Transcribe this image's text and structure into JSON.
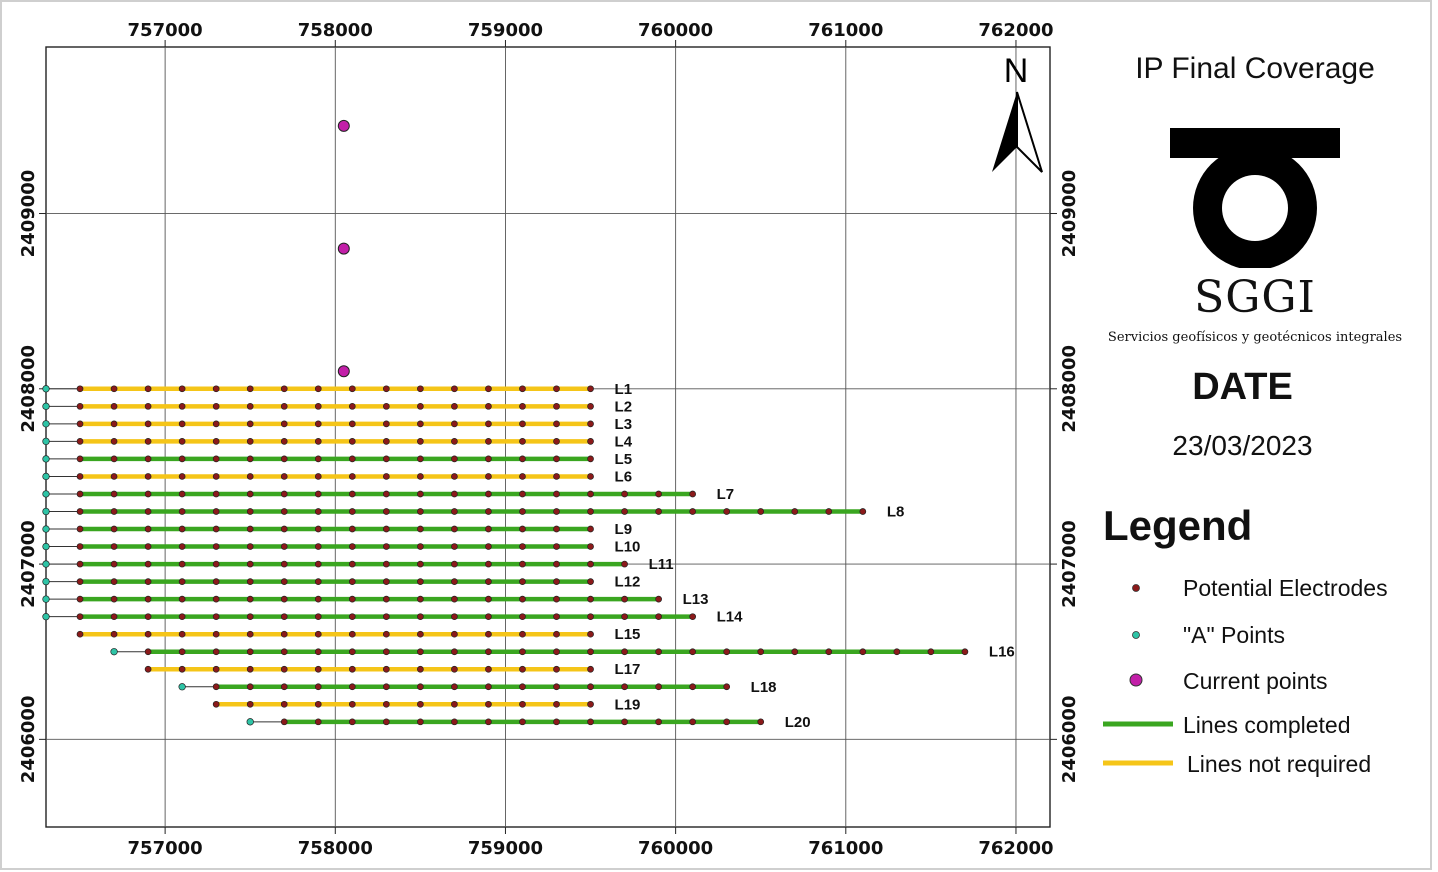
{
  "title": "IP Final Coverage",
  "brand": {
    "name": "SGGI",
    "subtitle": "Servicios geofísicos y geotécnicos integrales"
  },
  "date": {
    "label": "DATE",
    "value": "23/03/2023"
  },
  "north_arrow": {
    "letter": "N"
  },
  "legend": {
    "title": "Legend",
    "items": [
      {
        "label": "Potential Electrodes",
        "symbol": "small-dot",
        "color": "#8b1a1a"
      },
      {
        "label": "\"A\" Points",
        "symbol": "small-dot",
        "color": "#2ec4a6"
      },
      {
        "label": "Current points",
        "symbol": "large-dot",
        "color": "#c21fa8"
      },
      {
        "label": "Lines completed",
        "symbol": "line",
        "color": "#3aa620"
      },
      {
        "label": "Lines not required",
        "symbol": "line",
        "color": "#f5c518"
      }
    ]
  },
  "colors": {
    "completed": "#3aa620",
    "not_required": "#f5c518",
    "electrode": "#8b1a1a",
    "a_point": "#2ec4a6",
    "current": "#c21fa8"
  },
  "chart_data": {
    "type": "map",
    "x_axis": {
      "ticks": [
        757000,
        758000,
        759000,
        760000,
        761000,
        762000
      ],
      "range": [
        756300,
        762200
      ]
    },
    "y_axis": {
      "ticks": [
        2406000,
        2407000,
        2408000,
        2409000
      ],
      "range": [
        2405500,
        2409950
      ]
    },
    "grid": true,
    "current_points": [
      {
        "x": 758050,
        "y": 2409500
      },
      {
        "x": 758050,
        "y": 2408800
      },
      {
        "x": 758050,
        "y": 2408100
      }
    ],
    "lines": [
      {
        "name": "L1",
        "y": 2408000,
        "x_start": 756500,
        "x_end": 759500,
        "status": "not_required",
        "a_point": 756300
      },
      {
        "name": "L2",
        "y": 2407900,
        "x_start": 756500,
        "x_end": 759500,
        "status": "not_required",
        "a_point": 756300
      },
      {
        "name": "L3",
        "y": 2407800,
        "x_start": 756500,
        "x_end": 759500,
        "status": "not_required",
        "a_point": 756300
      },
      {
        "name": "L4",
        "y": 2407700,
        "x_start": 756500,
        "x_end": 759500,
        "status": "not_required",
        "a_point": 756300
      },
      {
        "name": "L5",
        "y": 2407600,
        "x_start": 756500,
        "x_end": 759500,
        "status": "completed",
        "a_point": 756300
      },
      {
        "name": "L6",
        "y": 2407500,
        "x_start": 756500,
        "x_end": 759500,
        "status": "not_required",
        "a_point": 756300
      },
      {
        "name": "L7",
        "y": 2407400,
        "x_start": 756500,
        "x_end": 760100,
        "status": "completed",
        "a_point": 756300
      },
      {
        "name": "L8",
        "y": 2407300,
        "x_start": 756500,
        "x_end": 761100,
        "status": "completed",
        "a_point": 756300
      },
      {
        "name": "L9",
        "y": 2407200,
        "x_start": 756500,
        "x_end": 759500,
        "status": "completed",
        "a_point": 756300
      },
      {
        "name": "L10",
        "y": 2407100,
        "x_start": 756500,
        "x_end": 759500,
        "status": "completed",
        "a_point": 756300
      },
      {
        "name": "L11",
        "y": 2407000,
        "x_start": 756500,
        "x_end": 759700,
        "status": "completed",
        "a_point": 756300
      },
      {
        "name": "L12",
        "y": 2406900,
        "x_start": 756500,
        "x_end": 759500,
        "status": "completed",
        "a_point": 756300
      },
      {
        "name": "L13",
        "y": 2406800,
        "x_start": 756500,
        "x_end": 759900,
        "status": "completed",
        "a_point": 756300
      },
      {
        "name": "L14",
        "y": 2406700,
        "x_start": 756500,
        "x_end": 760100,
        "status": "completed",
        "a_point": 756300
      },
      {
        "name": "L15",
        "y": 2406600,
        "x_start": 756500,
        "x_end": 759500,
        "status": "not_required",
        "a_point": null
      },
      {
        "name": "L16",
        "y": 2406500,
        "x_start": 756900,
        "x_end": 761700,
        "status": "completed",
        "a_point": 756700
      },
      {
        "name": "L17",
        "y": 2406400,
        "x_start": 756900,
        "x_end": 759500,
        "status": "not_required",
        "a_point": null
      },
      {
        "name": "L18",
        "y": 2406300,
        "x_start": 757300,
        "x_end": 760300,
        "status": "completed",
        "a_point": 757100
      },
      {
        "name": "L19",
        "y": 2406200,
        "x_start": 757300,
        "x_end": 759500,
        "status": "not_required",
        "a_point": null
      },
      {
        "name": "L20",
        "y": 2406100,
        "x_start": 757700,
        "x_end": 760500,
        "status": "completed",
        "a_point": 757500
      }
    ]
  }
}
